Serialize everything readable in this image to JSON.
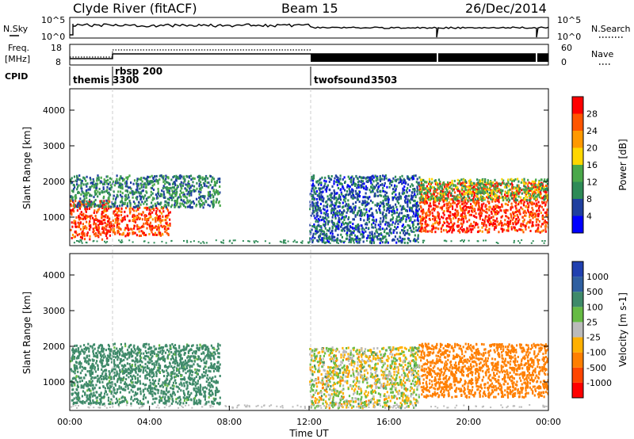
{
  "header": {
    "station": "Clyde River (fitACF)",
    "beam": "Beam 15",
    "date": "26/Dec/2014"
  },
  "noise_panel": {
    "left_label": "N.Sky",
    "right_label": "N.Search",
    "left_ticks": [
      "10^5",
      "10^0"
    ],
    "right_ticks": [
      "10^5",
      "10^0"
    ]
  },
  "freq_panel": {
    "left_label_1": "Freq.",
    "left_label_2": "[MHz]",
    "right_label": "Nave",
    "left_ticks": [
      "18",
      "8"
    ],
    "right_ticks": [
      "60",
      "0"
    ]
  },
  "cpid_panel": {
    "label": "CPID",
    "programs": [
      {
        "name": "themis",
        "id": "3300",
        "start_h": 0
      },
      {
        "name": "rbsp",
        "id": "200",
        "start_h": 2
      },
      {
        "name": "twofsound",
        "id": "3503",
        "start_h": 12
      }
    ]
  },
  "colors": {
    "power_scale": [
      "#0000ff",
      "#1f3f9f",
      "#2e8b57",
      "#4aa84a",
      "#ffd700",
      "#ff9900",
      "#ff5500",
      "#ff0000"
    ],
    "velocity_scale": [
      "#2040b0",
      "#2f5fa0",
      "#3f8a6a",
      "#66bb44",
      "#bbbbbb",
      "#ffb000",
      "#ff7f00",
      "#ff4500",
      "#ff0000"
    ],
    "grid": "#bbbbbb",
    "frame": "#000000"
  },
  "chart_data": [
    {
      "type": "heatmap",
      "quantity": "Power",
      "ylabel": "Slant Range [km]",
      "ylim": [
        200,
        4600
      ],
      "yticks": [
        1000,
        2000,
        3000,
        4000
      ],
      "xlim_hours": [
        0,
        24
      ],
      "colorbar_label": "Power [dB]",
      "colorbar_ticks": [
        4,
        8,
        12,
        16,
        20,
        24,
        28
      ],
      "colorbar_range": [
        0,
        32
      ],
      "scatter_regions": [
        {
          "t": [
            0,
            2
          ],
          "range": [
            400,
            1500
          ],
          "value": 28
        },
        {
          "t": [
            2,
            5
          ],
          "range": [
            500,
            1300
          ],
          "value": 27
        },
        {
          "t": [
            0,
            7.5
          ],
          "range": [
            1300,
            2200
          ],
          "value": 10
        },
        {
          "t": [
            12,
            17.5
          ],
          "range": [
            300,
            2200
          ],
          "value": 7
        },
        {
          "t": [
            17.5,
            24
          ],
          "range": [
            600,
            2000
          ],
          "value": 28
        },
        {
          "t": [
            17.5,
            24
          ],
          "range": [
            1500,
            2100
          ],
          "value": 14
        }
      ]
    },
    {
      "type": "heatmap",
      "quantity": "Velocity",
      "ylabel": "Slant Range [km]",
      "ylim": [
        200,
        4600
      ],
      "yticks": [
        1000,
        2000,
        3000,
        4000
      ],
      "xlim_hours": [
        0,
        24
      ],
      "xticks": [
        "00:00",
        "04:00",
        "08:00",
        "12:00",
        "16:00",
        "20:00",
        "00:00"
      ],
      "xlabel": "Time UT",
      "colorbar_label": "Velocity [m s-1]",
      "colorbar_ticks": [
        1000,
        500,
        100,
        25,
        -25,
        -100,
        -500,
        -1000
      ],
      "scatter_regions": [
        {
          "t": [
            0,
            7.5
          ],
          "range": [
            400,
            2100
          ],
          "value": 200
        },
        {
          "t": [
            12,
            17.5
          ],
          "range": [
            300,
            2000
          ],
          "value": 0
        },
        {
          "t": [
            17.5,
            24
          ],
          "range": [
            600,
            2100
          ],
          "value": -300
        }
      ]
    }
  ]
}
